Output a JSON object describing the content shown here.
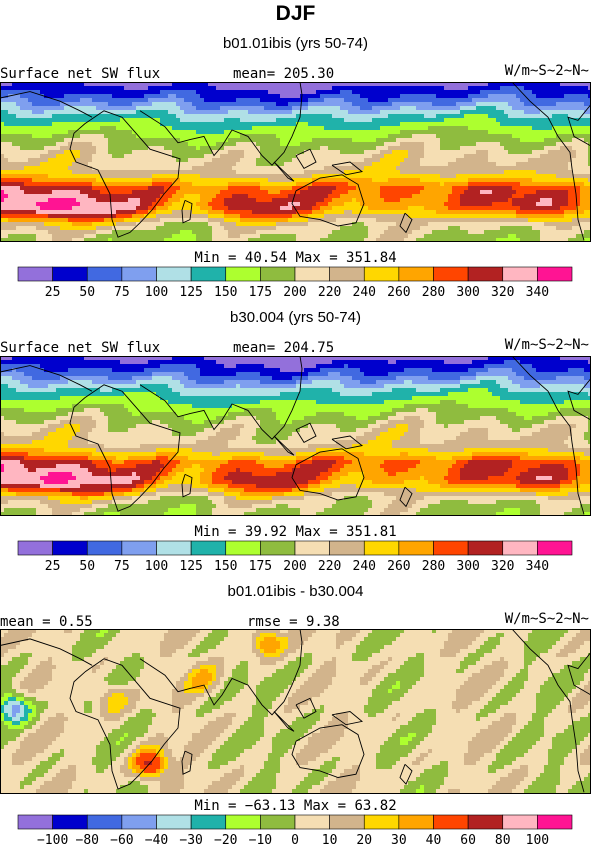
{
  "header": {
    "title": "DJF"
  },
  "panels": [
    {
      "id": "p1",
      "subtitle": "b01.01ibis (yrs 50-74)",
      "left_label": "Surface net SW flux",
      "center_label": "mean= 205.30",
      "units": "W/m~S~2~N~",
      "minmax": "Min =  40.54 Max = 351.84",
      "colorbar_ticks": [
        "25",
        "50",
        "75",
        "100",
        "125",
        "150",
        "175",
        "200",
        "220",
        "240",
        "260",
        "280",
        "300",
        "320",
        "340"
      ]
    },
    {
      "id": "p2",
      "subtitle": "b30.004 (yrs 50-74)",
      "left_label": "Surface net SW flux",
      "center_label": "mean= 204.75",
      "units": "W/m~S~2~N~",
      "minmax": "Min =  39.92 Max = 351.81",
      "colorbar_ticks": [
        "25",
        "50",
        "75",
        "100",
        "125",
        "150",
        "175",
        "200",
        "220",
        "240",
        "260",
        "280",
        "300",
        "320",
        "340"
      ]
    },
    {
      "id": "p3",
      "subtitle": "b01.01ibis - b30.004",
      "left_label": "mean =    0.55",
      "center_label": "rmse =    9.38",
      "units": "W/m~S~2~N~",
      "minmax": "Min = −63.13 Max =  63.82",
      "colorbar_ticks": [
        "−100",
        "−80",
        "−60",
        "−40",
        "−30",
        "−20",
        "−10",
        "0",
        "10",
        "20",
        "30",
        "40",
        "60",
        "80",
        "100"
      ]
    }
  ],
  "chart_data": [
    {
      "type": "heatmap",
      "title": "b01.01ibis (yrs 50-74)",
      "variable": "Surface net SW flux",
      "mean": 205.3,
      "min": 40.54,
      "max": 351.84,
      "units": "W/m~S~2~N~",
      "levels": [
        25,
        50,
        75,
        100,
        125,
        150,
        175,
        200,
        220,
        240,
        260,
        280,
        300,
        320,
        340
      ],
      "colors": [
        "#9370db",
        "#0000cd",
        "#4169e1",
        "#7f9fef",
        "#b0e0e6",
        "#20b2aa",
        "#adff2f",
        "#8fbc3f",
        "#f5deb3",
        "#d2b48c",
        "#ffd700",
        "#ffa500",
        "#ff4500",
        "#b22222",
        "#ffb6c1",
        "#ff1493"
      ],
      "field_profile": {
        "lat": [
          90,
          70,
          50,
          30,
          10,
          -10,
          -30,
          -50,
          -70,
          -90
        ],
        "value": [
          10,
          60,
          130,
          175,
          210,
          225,
          280,
          260,
          200,
          190
        ]
      }
    },
    {
      "type": "heatmap",
      "title": "b30.004 (yrs 50-74)",
      "variable": "Surface net SW flux",
      "mean": 204.75,
      "min": 39.92,
      "max": 351.81,
      "units": "W/m~S~2~N~",
      "levels": [
        25,
        50,
        75,
        100,
        125,
        150,
        175,
        200,
        220,
        240,
        260,
        280,
        300,
        320,
        340
      ],
      "colors": [
        "#9370db",
        "#0000cd",
        "#4169e1",
        "#7f9fef",
        "#b0e0e6",
        "#20b2aa",
        "#adff2f",
        "#8fbc3f",
        "#f5deb3",
        "#d2b48c",
        "#ffd700",
        "#ffa500",
        "#ff4500",
        "#b22222",
        "#ffb6c1",
        "#ff1493"
      ],
      "field_profile": {
        "lat": [
          90,
          70,
          50,
          30,
          10,
          -10,
          -30,
          -50,
          -70,
          -90
        ],
        "value": [
          10,
          58,
          128,
          172,
          208,
          222,
          278,
          258,
          198,
          188
        ]
      }
    },
    {
      "type": "heatmap",
      "title": "b01.01ibis - b30.004",
      "mean": 0.55,
      "rmse": 9.38,
      "min": -63.13,
      "max": 63.82,
      "units": "W/m~S~2~N~",
      "levels": [
        -100,
        -80,
        -60,
        -40,
        -30,
        -20,
        -10,
        0,
        10,
        20,
        30,
        40,
        60,
        80,
        100
      ],
      "colors": [
        "#9370db",
        "#0000cd",
        "#4169e1",
        "#7f9fef",
        "#b0e0e6",
        "#20b2aa",
        "#adff2f",
        "#8fbc3f",
        "#f5deb3",
        "#d2b48c",
        "#ffd700",
        "#ffa500",
        "#ff4500",
        "#b22222",
        "#ffb6c1",
        "#ff1493"
      ]
    }
  ]
}
